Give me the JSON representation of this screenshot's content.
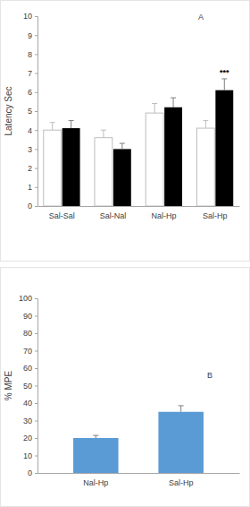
{
  "chart_data": [
    {
      "type": "bar",
      "panel_label": "A",
      "y_label": "Latency Sec",
      "categories": [
        "Sal-Sal",
        "Sal-Nal",
        "Nal-Hp",
        "Sal-Hp"
      ],
      "series": [
        {
          "color": "#ffffff",
          "values": [
            4.0,
            3.6,
            4.9,
            4.1
          ],
          "errors": [
            0.4,
            0.4,
            0.5,
            0.4
          ]
        },
        {
          "color": "#000000",
          "values": [
            4.1,
            3.0,
            5.2,
            6.1
          ],
          "errors": [
            0.4,
            0.3,
            0.5,
            0.6
          ]
        }
      ],
      "annotations": [
        {
          "text": "***",
          "category": "Sal-Hp"
        }
      ],
      "ylim": [
        0,
        10
      ],
      "yticks": [
        0,
        1,
        2,
        3,
        4,
        5,
        6,
        7,
        8,
        9,
        10
      ],
      "grid": false
    },
    {
      "type": "bar",
      "panel_label": "B",
      "y_label": "% MPE",
      "categories": [
        "Nal-Hp",
        "Sal-Hp"
      ],
      "values": [
        20,
        35
      ],
      "errors": [
        1.5,
        3.5
      ],
      "color": "#5b9bd5",
      "ylim": [
        0,
        100
      ],
      "yticks": [
        0,
        10,
        20,
        30,
        40,
        50,
        60,
        70,
        80,
        90,
        100
      ],
      "grid": false
    }
  ]
}
